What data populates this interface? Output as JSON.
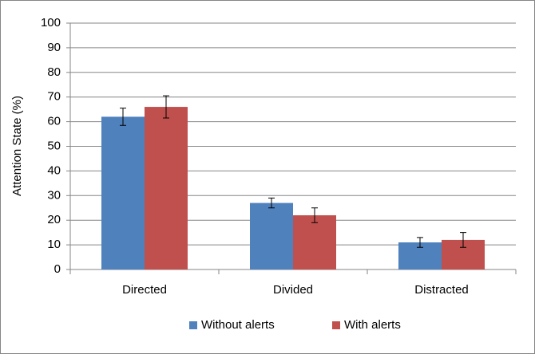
{
  "chart_data": {
    "type": "bar",
    "y_label": "Attention State (%)",
    "categories": [
      "Directed",
      "Divided",
      "Distracted"
    ],
    "series": [
      {
        "name": "Without alerts",
        "color": "#4f81bd",
        "values": [
          62,
          27,
          11
        ],
        "errors": [
          3.5,
          2,
          2
        ]
      },
      {
        "name": "With alerts",
        "color": "#c0504d",
        "values": [
          66,
          22,
          12
        ],
        "errors": [
          4.5,
          3,
          3
        ]
      }
    ],
    "ylim": [
      0,
      100
    ],
    "yticks": [
      0,
      10,
      20,
      30,
      40,
      50,
      60,
      70,
      80,
      90,
      100
    ],
    "grid": true,
    "legend": "bottom"
  }
}
